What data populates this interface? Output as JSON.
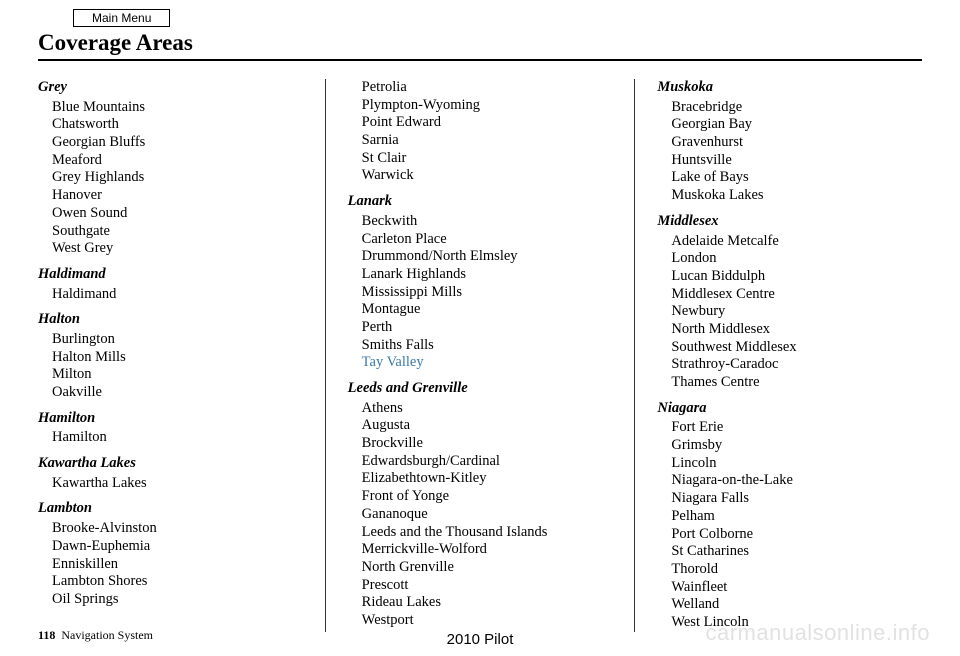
{
  "mainMenu": "Main Menu",
  "pageTitle": "Coverage Areas",
  "columns": [
    [
      {
        "heading": "Grey",
        "items": [
          "Blue Mountains",
          "Chatsworth",
          "Georgian Bluffs",
          "Meaford",
          "Grey Highlands",
          "Hanover",
          "Owen Sound",
          "Southgate",
          "West Grey"
        ]
      },
      {
        "heading": "Haldimand",
        "items": [
          "Haldimand"
        ]
      },
      {
        "heading": "Halton",
        "items": [
          "Burlington",
          "Halton Mills",
          "Milton",
          "Oakville"
        ]
      },
      {
        "heading": "Hamilton",
        "items": [
          "Hamilton"
        ]
      },
      {
        "heading": "Kawartha Lakes",
        "items": [
          "Kawartha Lakes"
        ]
      },
      {
        "heading": "Lambton",
        "items": [
          "Brooke-Alvinston",
          "Dawn-Euphemia",
          "Enniskillen",
          "Lambton Shores",
          "Oil Springs"
        ]
      }
    ],
    [
      {
        "heading": null,
        "items": [
          "Petrolia",
          "Plympton-Wyoming",
          "Point Edward",
          "Sarnia",
          "St Clair",
          "Warwick"
        ]
      },
      {
        "heading": "Lanark",
        "items": [
          "Beckwith",
          "Carleton Place",
          "Drummond/North Elmsley",
          "Lanark Highlands",
          "Mississippi Mills",
          "Montague",
          "Perth",
          "Smiths Falls",
          {
            "text": "Tay Valley",
            "highlight": true
          }
        ]
      },
      {
        "heading": "Leeds and Grenville",
        "items": [
          "Athens",
          "Augusta",
          "Brockville",
          "Edwardsburgh/Cardinal",
          "Elizabethtown-Kitley",
          "Front of Yonge",
          "Gananoque",
          "Leeds and the Thousand Islands",
          "Merrickville-Wolford",
          "North Grenville",
          "Prescott",
          "Rideau Lakes",
          "Westport"
        ]
      }
    ],
    [
      {
        "heading": "Muskoka",
        "items": [
          "Bracebridge",
          "Georgian Bay",
          "Gravenhurst",
          "Huntsville",
          "Lake of Bays",
          "Muskoka Lakes"
        ]
      },
      {
        "heading": "Middlesex",
        "items": [
          "Adelaide Metcalfe",
          "London",
          "Lucan Biddulph",
          "Middlesex Centre",
          "Newbury",
          "North Middlesex",
          "Southwest Middlesex",
          "Strathroy-Caradoc",
          "Thames Centre"
        ]
      },
      {
        "heading": "Niagara",
        "items": [
          "Fort Erie",
          "Grimsby",
          "Lincoln",
          "Niagara-on-the-Lake",
          "Niagara Falls",
          "Pelham",
          "Port Colborne",
          "St Catharines",
          "Thorold",
          "Wainfleet",
          "Welland",
          "West Lincoln"
        ]
      }
    ]
  ],
  "footer": {
    "page": "118",
    "label": "Navigation System"
  },
  "centerBottom": "2010 Pilot",
  "watermark": "carmanualsonline.info",
  "colors": {
    "highlight": "#3a7aa5",
    "watermark": "#e2e2e2",
    "text": "#000000",
    "bg": "#ffffff"
  }
}
